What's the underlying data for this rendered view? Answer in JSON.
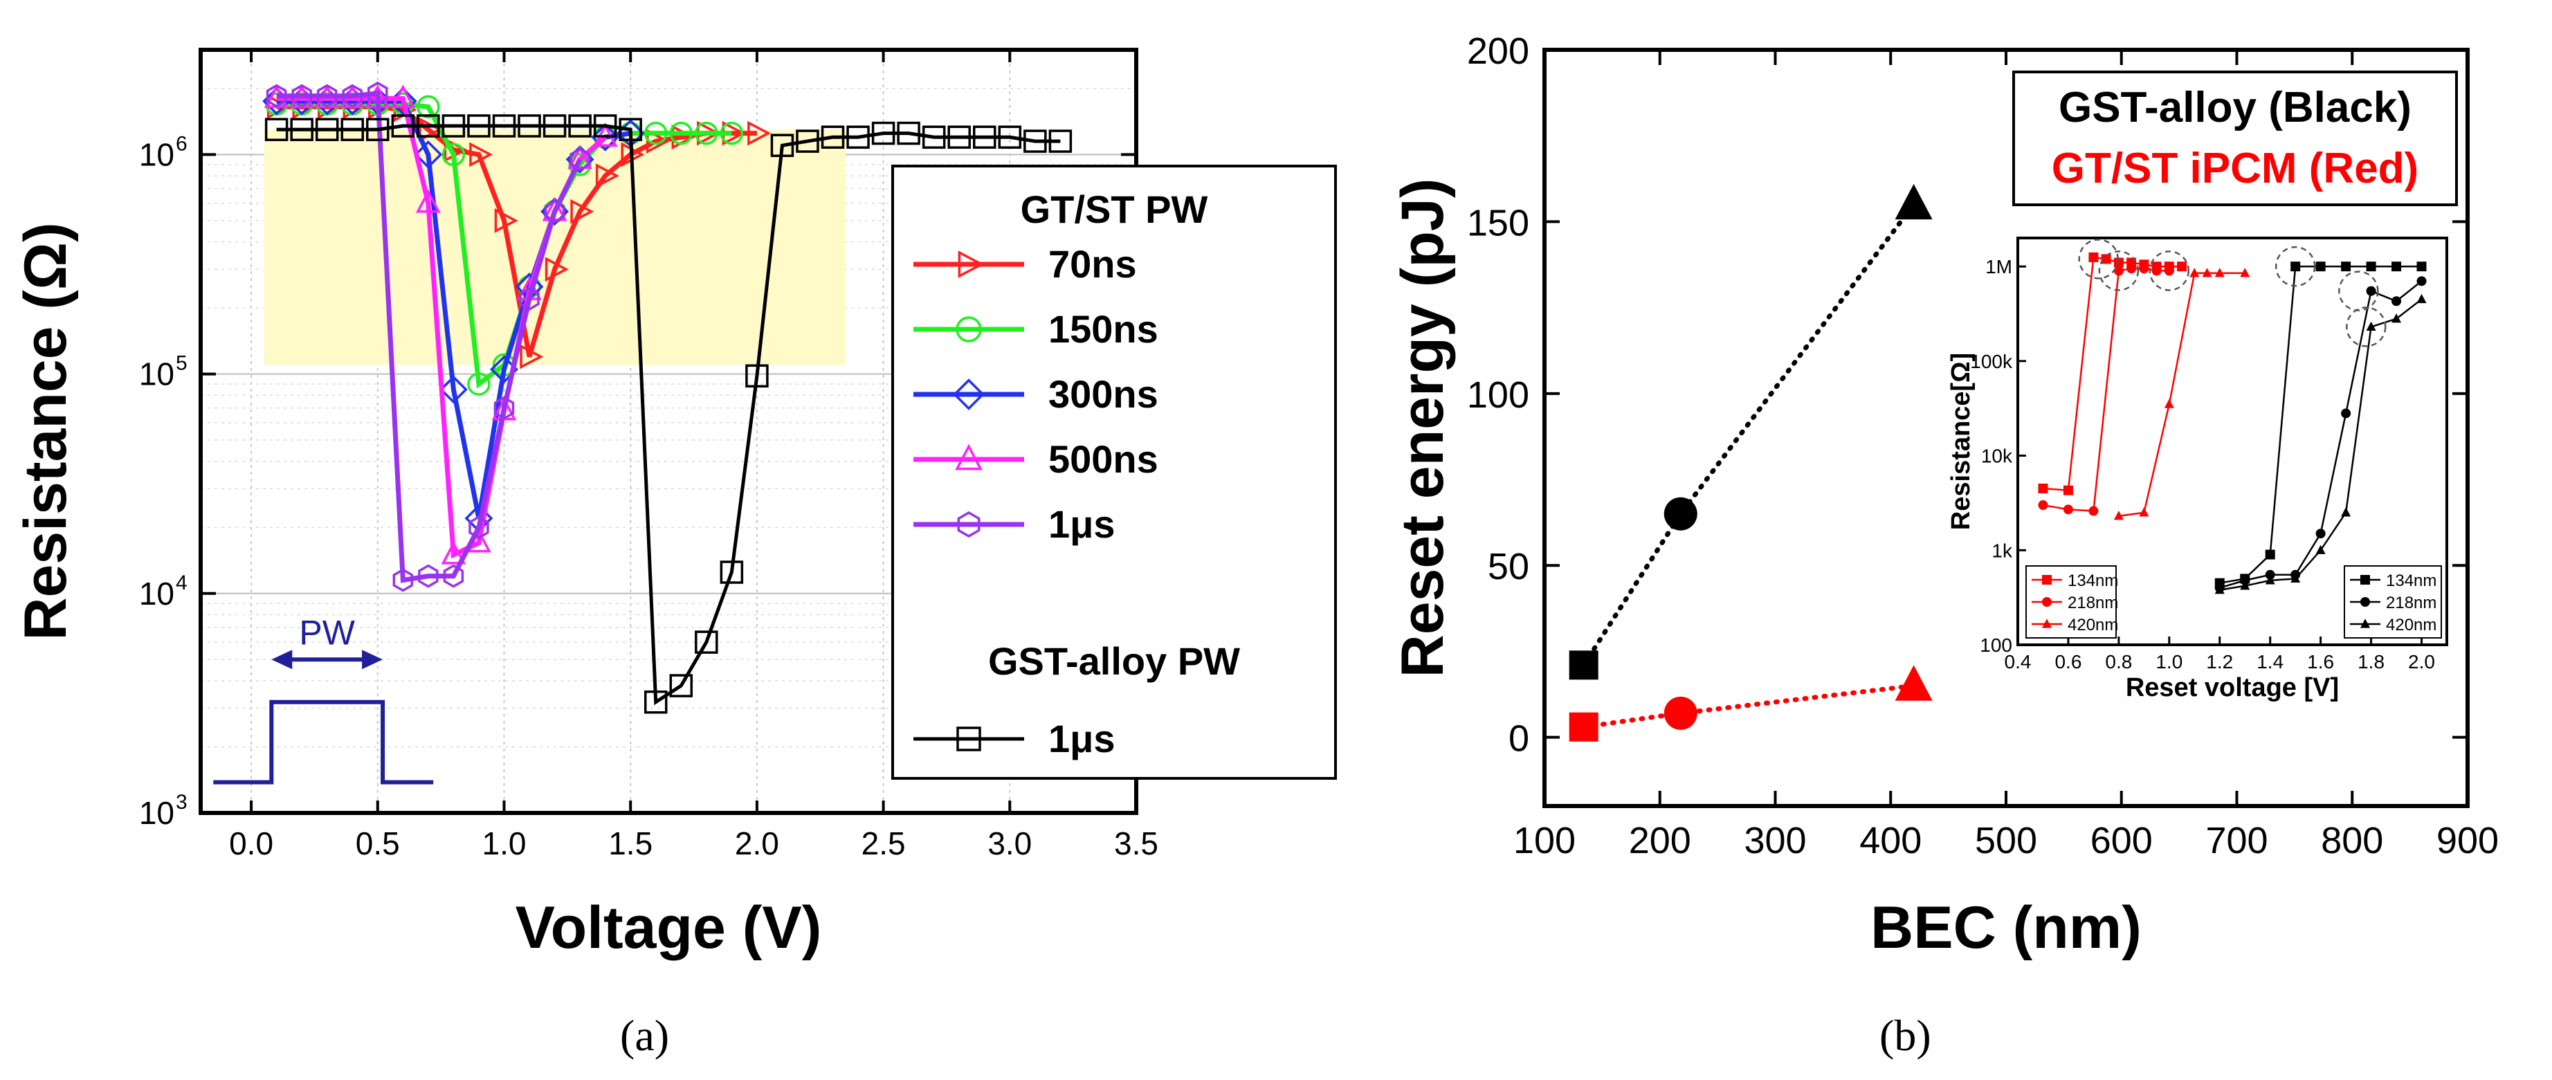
{
  "chart_data": [
    {
      "type": "line",
      "panel_label": "a",
      "xlabel": "Voltage (V)",
      "ylabel": "Resistance (Ω)",
      "y_scale": "log",
      "xlim": [
        -0.2,
        3.5
      ],
      "ylim": [
        1000,
        3000000
      ],
      "x_ticks": [
        "0.0",
        "0.5",
        "1.0",
        "1.5",
        "2.0",
        "2.5",
        "3.0",
        "3.5"
      ],
      "y_tick_labels": [
        "10",
        "10",
        "10",
        "10"
      ],
      "y_tick_exponents": [
        "3",
        "4",
        "5",
        "6"
      ],
      "highlight_band": {
        "x": [
          0.05,
          2.35
        ],
        "y": [
          110000,
          1300000
        ],
        "color": "#fffac8"
      },
      "legend": {
        "title": "GT/ST PW",
        "subtitle": "GST-alloy PW"
      },
      "pulse": {
        "label": "PW",
        "color": "#1f1f99",
        "x_range": [
          0.1,
          0.5
        ]
      },
      "series": [
        {
          "name": "70ns",
          "group": "GT/ST",
          "color": "#ff2020",
          "marker": "triangle-right",
          "x": [
            0.1,
            0.2,
            0.3,
            0.4,
            0.5,
            0.6,
            0.7,
            0.8,
            0.9,
            1.0,
            1.1,
            1.2,
            1.3,
            1.4,
            1.5,
            1.6,
            1.7,
            1.8,
            1.9,
            2.0
          ],
          "y": [
            1650000,
            1650000,
            1650000,
            1650000,
            1650000,
            1600000,
            1300000,
            1050000,
            1000000,
            500000,
            120000,
            300000,
            550000,
            800000,
            1000000,
            1150000,
            1200000,
            1250000,
            1250000,
            1250000
          ]
        },
        {
          "name": "150ns",
          "group": "GT/ST",
          "color": "#22ee22",
          "marker": "circle",
          "x": [
            0.1,
            0.2,
            0.3,
            0.4,
            0.5,
            0.6,
            0.7,
            0.8,
            0.9,
            1.0,
            1.1,
            1.2,
            1.3,
            1.4,
            1.5,
            1.6,
            1.7,
            1.8,
            1.9
          ],
          "y": [
            1700000,
            1700000,
            1700000,
            1700000,
            1700000,
            1700000,
            1650000,
            1000000,
            90000,
            110000,
            250000,
            550000,
            900000,
            1200000,
            1250000,
            1250000,
            1250000,
            1250000,
            1250000
          ]
        },
        {
          "name": "300ns",
          "group": "GT/ST",
          "color": "#2233ee",
          "marker": "diamond",
          "x": [
            0.1,
            0.2,
            0.3,
            0.4,
            0.5,
            0.6,
            0.7,
            0.8,
            0.9,
            1.0,
            1.1,
            1.2,
            1.3,
            1.4,
            1.5
          ],
          "y": [
            1750000,
            1750000,
            1750000,
            1750000,
            1750000,
            1750000,
            1000000,
            85000,
            22000,
            105000,
            250000,
            550000,
            950000,
            1200000,
            1250000
          ]
        },
        {
          "name": "500ns",
          "group": "GT/ST",
          "color": "#ff22ff",
          "marker": "triangle-up",
          "x": [
            0.1,
            0.2,
            0.3,
            0.4,
            0.5,
            0.6,
            0.7,
            0.8,
            0.9,
            1.0,
            1.1,
            1.2,
            1.3,
            1.4
          ],
          "y": [
            1800000,
            1800000,
            1800000,
            1800000,
            1800000,
            1800000,
            600000,
            15000,
            17000,
            68000,
            240000,
            550000,
            950000,
            1200000
          ]
        },
        {
          "name": "1μs",
          "group": "GT/ST",
          "color": "#9933ee",
          "marker": "hexagon",
          "x": [
            0.1,
            0.2,
            0.3,
            0.4,
            0.5,
            0.6,
            0.7,
            0.8,
            0.9,
            1.0,
            1.1,
            1.2,
            1.3
          ],
          "y": [
            1850000,
            1850000,
            1850000,
            1850000,
            1900000,
            11500,
            12000,
            12000,
            20000,
            70000,
            220000,
            550000,
            950000
          ]
        },
        {
          "name": "1μs",
          "group": "GST-alloy",
          "color": "#000000",
          "marker": "square",
          "x": [
            0.1,
            0.2,
            0.3,
            0.4,
            0.5,
            0.6,
            0.7,
            0.8,
            0.9,
            1.0,
            1.1,
            1.2,
            1.3,
            1.4,
            1.5,
            1.6,
            1.7,
            1.8,
            1.9,
            2.0,
            2.1,
            2.2,
            2.3,
            2.4,
            2.5,
            2.6,
            2.7,
            2.8,
            2.9,
            3.0,
            3.1,
            3.2
          ],
          "y": [
            1300000,
            1300000,
            1300000,
            1300000,
            1300000,
            1350000,
            1350000,
            1350000,
            1350000,
            1350000,
            1350000,
            1350000,
            1350000,
            1350000,
            1300000,
            3200,
            3800,
            6000,
            12500,
            98000,
            1100000,
            1150000,
            1200000,
            1200000,
            1250000,
            1250000,
            1200000,
            1200000,
            1200000,
            1200000,
            1150000,
            1150000
          ]
        }
      ]
    },
    {
      "type": "scatter",
      "panel_label": "b",
      "xlabel": "BEC (nm)",
      "ylabel": "Reset energy (pJ)",
      "xlim": [
        100,
        900
      ],
      "ylim": [
        -20,
        200
      ],
      "x_ticks": [
        "100",
        "200",
        "300",
        "400",
        "500",
        "600",
        "700",
        "800",
        "900"
      ],
      "y_ticks": [
        "0",
        "50",
        "100",
        "150",
        "200"
      ],
      "legend_lines": [
        {
          "text": "GST-alloy (Black)",
          "color": "#000000"
        },
        {
          "text": "GT/ST iPCM (Red)",
          "color": "#ff0000"
        }
      ],
      "series": [
        {
          "name": "GST-alloy",
          "color": "#000000",
          "markers": [
            "square",
            "circle",
            "triangle"
          ],
          "x": [
            134,
            218,
            420
          ],
          "y": [
            21,
            65,
            155
          ]
        },
        {
          "name": "GT/ST iPCM",
          "color": "#ff0000",
          "markers": [
            "square",
            "circle",
            "triangle"
          ],
          "x": [
            134,
            218,
            420
          ],
          "y": [
            3,
            7,
            15
          ]
        }
      ]
    },
    {
      "type": "line",
      "panel_label": "b-inset",
      "xlabel": "Reset voltage [V]",
      "ylabel": "Resistance[Ω]",
      "y_scale": "log",
      "xlim": [
        0.4,
        2.1
      ],
      "ylim": [
        100,
        2000000
      ],
      "x_ticks": [
        "0.4",
        "0.6",
        "0.8",
        "1.0",
        "1.2",
        "1.4",
        "1.6",
        "1.8",
        "2.0"
      ],
      "y_ticks": [
        "100",
        "1k",
        "10k",
        "100k",
        "1M"
      ],
      "highlight_circles": [
        [
          0.72,
          1200000
        ],
        [
          0.8,
          900000
        ],
        [
          1.0,
          900000
        ],
        [
          1.5,
          1000000
        ],
        [
          1.75,
          550000
        ],
        [
          1.78,
          230000
        ]
      ],
      "series": [
        {
          "name": "134nm",
          "group": "red",
          "color": "#ff0000",
          "marker": "square",
          "x": [
            0.5,
            0.6,
            0.7,
            0.75,
            0.8,
            0.85,
            0.9,
            0.95,
            1.0,
            1.05
          ],
          "y": [
            4500,
            4300,
            1250000,
            1200000,
            1100000,
            1100000,
            1050000,
            1000000,
            1000000,
            1000000
          ]
        },
        {
          "name": "218nm",
          "group": "red",
          "color": "#ff0000",
          "marker": "circle",
          "x": [
            0.5,
            0.6,
            0.7,
            0.8,
            0.85,
            0.9,
            0.95,
            1.0
          ],
          "y": [
            3000,
            2700,
            2600,
            900000,
            950000,
            950000,
            900000,
            900000
          ]
        },
        {
          "name": "420nm",
          "group": "red",
          "color": "#ff0000",
          "marker": "triangle",
          "x": [
            0.8,
            0.9,
            1.0,
            1.1,
            1.15,
            1.2,
            1.3
          ],
          "y": [
            2300,
            2500,
            35000,
            850000,
            850000,
            850000,
            850000
          ]
        },
        {
          "name": "134nm",
          "group": "black",
          "color": "#000000",
          "marker": "square",
          "x": [
            1.2,
            1.3,
            1.4,
            1.5,
            1.6,
            1.7,
            1.8,
            1.9,
            2.0
          ],
          "y": [
            450,
            500,
            900,
            1000000,
            1000000,
            1000000,
            1000000,
            1000000,
            1000000
          ]
        },
        {
          "name": "218nm",
          "group": "black",
          "color": "#000000",
          "marker": "circle",
          "x": [
            1.2,
            1.3,
            1.4,
            1.5,
            1.6,
            1.7,
            1.8,
            1.9,
            2.0
          ],
          "y": [
            400,
            480,
            550,
            550,
            1500,
            28000,
            550000,
            430000,
            700000
          ]
        },
        {
          "name": "420nm",
          "group": "black",
          "color": "#000000",
          "marker": "triangle",
          "x": [
            1.2,
            1.3,
            1.4,
            1.5,
            1.6,
            1.7,
            1.8,
            1.9,
            2.0
          ],
          "y": [
            380,
            420,
            480,
            500,
            1000,
            2500,
            230000,
            280000,
            450000
          ]
        }
      ]
    }
  ],
  "captions": {
    "a": "(a)",
    "b": "(b)"
  }
}
